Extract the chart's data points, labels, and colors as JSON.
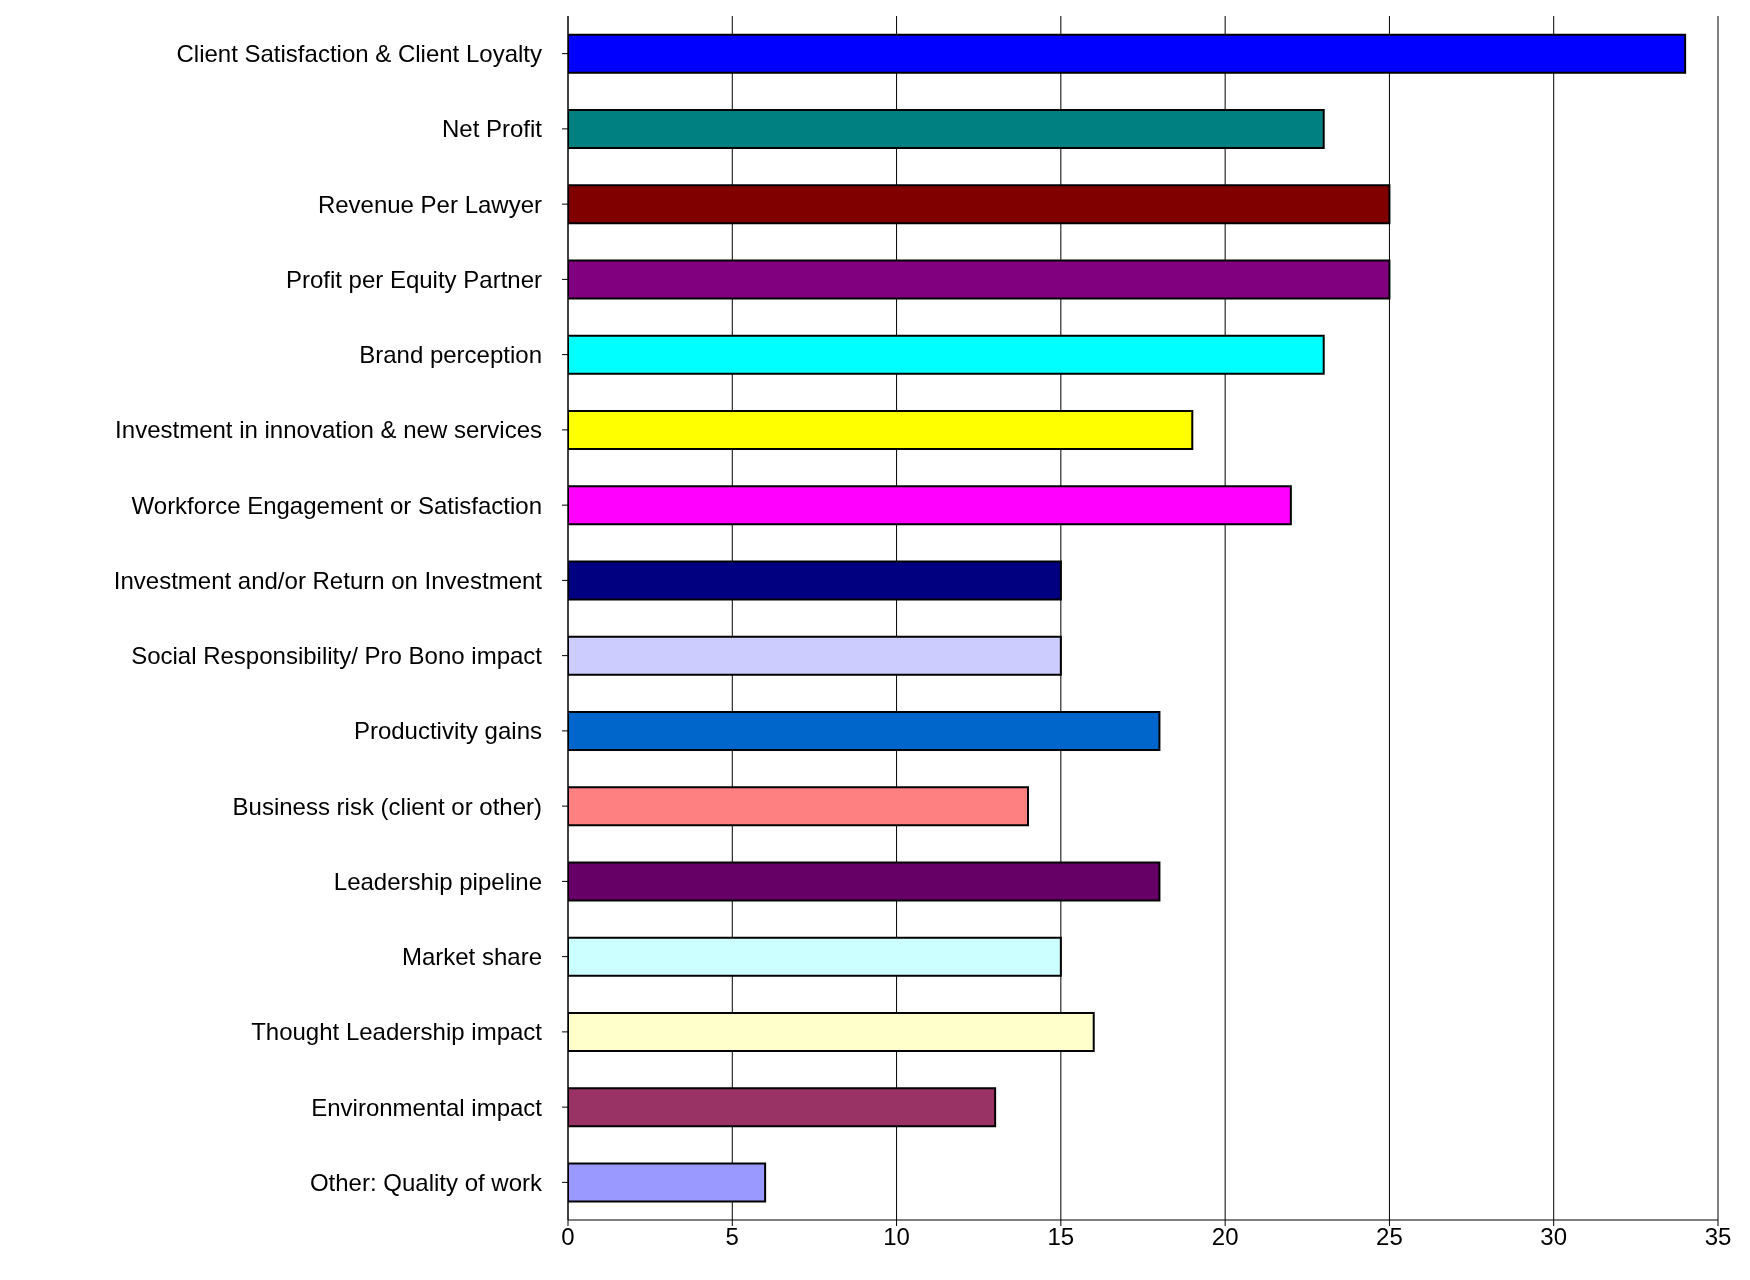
{
  "chart_data": {
    "type": "bar",
    "orientation": "horizontal",
    "categories": [
      "Client Satisfaction & Client Loyalty",
      "Net Profit",
      "Revenue Per Lawyer",
      "Profit per Equity Partner",
      "Brand perception",
      "Investment in innovation & new services",
      "Workforce Engagement or Satisfaction",
      "Investment and/or Return on Investment",
      "Social Responsibility/ Pro Bono impact",
      "Productivity gains",
      "Business risk (client or other)",
      "Leadership pipeline",
      "Market share",
      "Thought Leadership impact",
      "Environmental impact",
      "Other: Quality of work"
    ],
    "values": [
      34,
      23,
      25,
      25,
      23,
      19,
      22,
      15,
      15,
      18,
      14,
      18,
      15,
      16,
      13,
      6
    ],
    "colors": [
      "#0000ff",
      "#008080",
      "#800000",
      "#800080",
      "#00ffff",
      "#ffff00",
      "#ff00ff",
      "#000080",
      "#ccccff",
      "#0066cc",
      "#ff8080",
      "#660066",
      "#ccffff",
      "#ffffcc",
      "#993366",
      "#9999ff"
    ],
    "xlim": [
      0,
      35
    ],
    "xticks": [
      0,
      5,
      10,
      15,
      20,
      25,
      30,
      35
    ],
    "grid": "x"
  }
}
